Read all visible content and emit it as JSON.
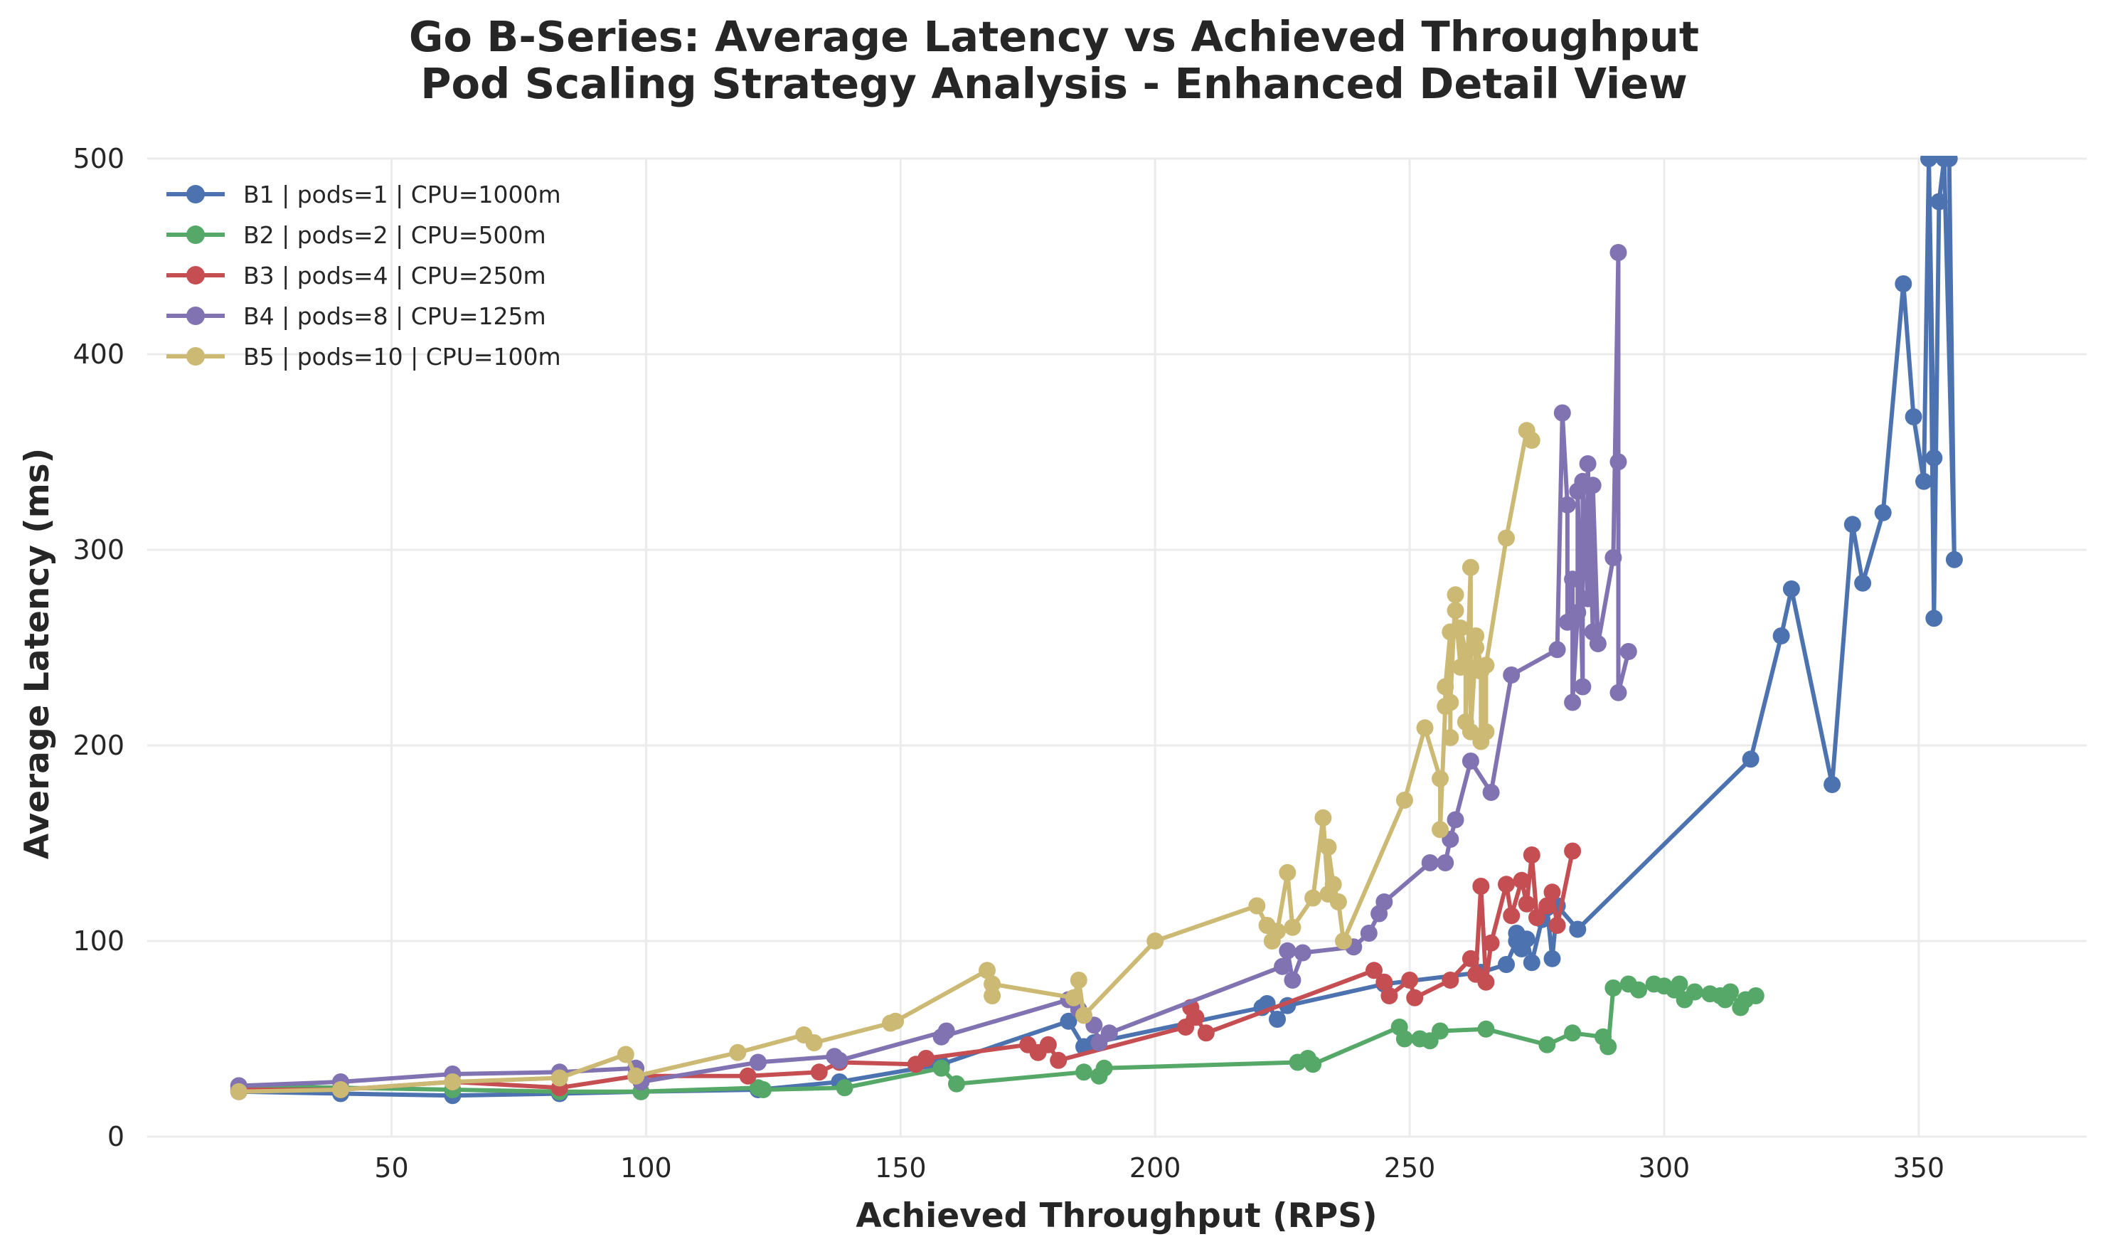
{
  "chart_data": {
    "type": "line",
    "title": "Go B-Series: Average Latency vs Achieved Throughput",
    "subtitle": "Pod Scaling Strategy Analysis - Enhanced Detail View",
    "xlabel": "Achieved Throughput (RPS)",
    "ylabel": "Average Latency (ms)",
    "xlim": [
      2,
      383
    ],
    "ylim": [
      0,
      500
    ],
    "xticks": [
      50,
      100,
      150,
      200,
      250,
      300,
      350
    ],
    "yticks": [
      0,
      100,
      200,
      300,
      400,
      500
    ],
    "grid": true,
    "legend": "top-left",
    "series": [
      {
        "name": "B1 | pods=1 | CPU=1000m",
        "color": "#4c72b0",
        "points": [
          [
            20,
            23
          ],
          [
            40,
            22
          ],
          [
            62,
            21
          ],
          [
            83,
            22
          ],
          [
            99,
            23
          ],
          [
            122,
            24
          ],
          [
            138,
            28
          ],
          [
            158,
            37
          ],
          [
            183,
            59
          ],
          [
            186,
            46
          ],
          [
            188,
            48
          ],
          [
            221,
            66
          ],
          [
            222,
            68
          ],
          [
            224,
            60
          ],
          [
            226,
            67
          ],
          [
            245,
            78
          ],
          [
            264,
            84
          ],
          [
            269,
            88
          ],
          [
            271,
            100
          ],
          [
            272,
            96
          ],
          [
            271,
            104
          ],
          [
            273,
            101
          ],
          [
            274,
            89
          ],
          [
            276,
            111
          ],
          [
            277,
            117
          ],
          [
            278,
            91
          ],
          [
            279,
            118
          ],
          [
            283,
            106
          ],
          [
            317,
            193
          ],
          [
            323,
            256
          ],
          [
            325,
            280
          ],
          [
            333,
            180
          ],
          [
            337,
            313
          ],
          [
            339,
            283
          ],
          [
            343,
            319
          ],
          [
            347,
            436
          ],
          [
            349,
            368
          ],
          [
            351,
            335
          ],
          [
            352,
            500
          ],
          [
            353,
            347
          ],
          [
            352,
            500
          ],
          [
            353,
            265
          ],
          [
            354,
            478
          ],
          [
            355,
            500
          ],
          [
            357,
            295
          ],
          [
            356,
            500
          ]
        ]
      },
      {
        "name": "B2 | pods=2 | CPU=500m",
        "color": "#55a868",
        "points": [
          [
            20,
            26
          ],
          [
            40,
            25
          ],
          [
            62,
            24
          ],
          [
            83,
            23
          ],
          [
            99,
            23
          ],
          [
            122,
            25
          ],
          [
            123,
            24
          ],
          [
            139,
            25
          ],
          [
            158,
            35
          ],
          [
            161,
            27
          ],
          [
            186,
            33
          ],
          [
            189,
            31
          ],
          [
            190,
            35
          ],
          [
            228,
            38
          ],
          [
            230,
            40
          ],
          [
            231,
            37
          ],
          [
            248,
            56
          ],
          [
            249,
            50
          ],
          [
            252,
            50
          ],
          [
            254,
            49
          ],
          [
            256,
            54
          ],
          [
            265,
            55
          ],
          [
            277,
            47
          ],
          [
            282,
            53
          ],
          [
            288,
            51
          ],
          [
            289,
            46
          ],
          [
            290,
            76
          ],
          [
            293,
            78
          ],
          [
            295,
            75
          ],
          [
            298,
            78
          ],
          [
            300,
            77
          ],
          [
            302,
            75
          ],
          [
            303,
            78
          ],
          [
            304,
            70
          ],
          [
            306,
            74
          ],
          [
            309,
            73
          ],
          [
            311,
            72
          ],
          [
            312,
            70
          ],
          [
            313,
            74
          ],
          [
            315,
            66
          ],
          [
            316,
            70
          ],
          [
            318,
            72
          ]
        ]
      },
      {
        "name": "B3 | pods=4 | CPU=250m",
        "color": "#c44e52",
        "points": [
          [
            20,
            24
          ],
          [
            40,
            24
          ],
          [
            62,
            28
          ],
          [
            83,
            25
          ],
          [
            98,
            31
          ],
          [
            120,
            31
          ],
          [
            134,
            33
          ],
          [
            138,
            38
          ],
          [
            153,
            37
          ],
          [
            155,
            40
          ],
          [
            175,
            47
          ],
          [
            177,
            43
          ],
          [
            179,
            47
          ],
          [
            181,
            39
          ],
          [
            206,
            56
          ],
          [
            207,
            66
          ],
          [
            208,
            61
          ],
          [
            210,
            53
          ],
          [
            243,
            85
          ],
          [
            245,
            79
          ],
          [
            246,
            72
          ],
          [
            250,
            80
          ],
          [
            251,
            71
          ],
          [
            258,
            80
          ],
          [
            262,
            91
          ],
          [
            263,
            83
          ],
          [
            264,
            128
          ],
          [
            265,
            79
          ],
          [
            266,
            99
          ],
          [
            269,
            129
          ],
          [
            270,
            113
          ],
          [
            272,
            131
          ],
          [
            273,
            119
          ],
          [
            274,
            144
          ],
          [
            275,
            112
          ],
          [
            277,
            118
          ],
          [
            278,
            125
          ],
          [
            279,
            108
          ],
          [
            282,
            146
          ]
        ]
      },
      {
        "name": "B4 | pods=8 | CPU=125m",
        "color": "#8172b2",
        "points": [
          [
            20,
            26
          ],
          [
            40,
            28
          ],
          [
            62,
            32
          ],
          [
            83,
            33
          ],
          [
            98,
            35
          ],
          [
            99,
            28
          ],
          [
            122,
            38
          ],
          [
            137,
            41
          ],
          [
            138,
            39
          ],
          [
            159,
            54
          ],
          [
            158,
            51
          ],
          [
            183,
            70
          ],
          [
            185,
            65
          ],
          [
            188,
            57
          ],
          [
            189,
            48
          ],
          [
            191,
            53
          ],
          [
            225,
            87
          ],
          [
            226,
            95
          ],
          [
            227,
            80
          ],
          [
            229,
            94
          ],
          [
            239,
            97
          ],
          [
            242,
            104
          ],
          [
            244,
            114
          ],
          [
            245,
            120
          ],
          [
            254,
            140
          ],
          [
            257,
            140
          ],
          [
            258,
            152
          ],
          [
            259,
            162
          ],
          [
            262,
            192
          ],
          [
            266,
            176
          ],
          [
            270,
            236
          ],
          [
            279,
            249
          ],
          [
            280,
            370
          ],
          [
            281,
            323
          ],
          [
            281,
            263
          ],
          [
            282,
            285
          ],
          [
            282,
            222
          ],
          [
            283,
            268
          ],
          [
            283,
            330
          ],
          [
            284,
            230
          ],
          [
            284,
            335
          ],
          [
            285,
            275
          ],
          [
            285,
            344
          ],
          [
            286,
            258
          ],
          [
            286,
            333
          ],
          [
            287,
            252
          ],
          [
            290,
            296
          ],
          [
            291,
            452
          ],
          [
            291,
            345
          ],
          [
            291,
            227
          ],
          [
            293,
            248
          ]
        ]
      },
      {
        "name": "B5 | pods=10 | CPU=100m",
        "color": "#ccb974",
        "points": [
          [
            20,
            23
          ],
          [
            40,
            24
          ],
          [
            62,
            28
          ],
          [
            83,
            30
          ],
          [
            96,
            42
          ],
          [
            98,
            31
          ],
          [
            118,
            43
          ],
          [
            131,
            52
          ],
          [
            133,
            48
          ],
          [
            148,
            58
          ],
          [
            149,
            59
          ],
          [
            167,
            85
          ],
          [
            168,
            72
          ],
          [
            168,
            78
          ],
          [
            184,
            71
          ],
          [
            185,
            80
          ],
          [
            186,
            62
          ],
          [
            200,
            100
          ],
          [
            220,
            118
          ],
          [
            222,
            108
          ],
          [
            223,
            100
          ],
          [
            224,
            105
          ],
          [
            226,
            135
          ],
          [
            227,
            107
          ],
          [
            231,
            122
          ],
          [
            233,
            163
          ],
          [
            234,
            124
          ],
          [
            234,
            148
          ],
          [
            235,
            129
          ],
          [
            236,
            120
          ],
          [
            237,
            100
          ],
          [
            249,
            172
          ],
          [
            253,
            209
          ],
          [
            256,
            183
          ],
          [
            256,
            157
          ],
          [
            257,
            220
          ],
          [
            257,
            230
          ],
          [
            258,
            258
          ],
          [
            258,
            204
          ],
          [
            258,
            222
          ],
          [
            259,
            277
          ],
          [
            259,
            269
          ],
          [
            260,
            240
          ],
          [
            260,
            260
          ],
          [
            261,
            248
          ],
          [
            261,
            212
          ],
          [
            262,
            291
          ],
          [
            262,
            207
          ],
          [
            263,
            250
          ],
          [
            263,
            256
          ],
          [
            264,
            240
          ],
          [
            264,
            202
          ],
          [
            264,
            238
          ],
          [
            265,
            207
          ],
          [
            265,
            241
          ],
          [
            269,
            306
          ],
          [
            273,
            361
          ],
          [
            274,
            356
          ]
        ]
      }
    ]
  }
}
